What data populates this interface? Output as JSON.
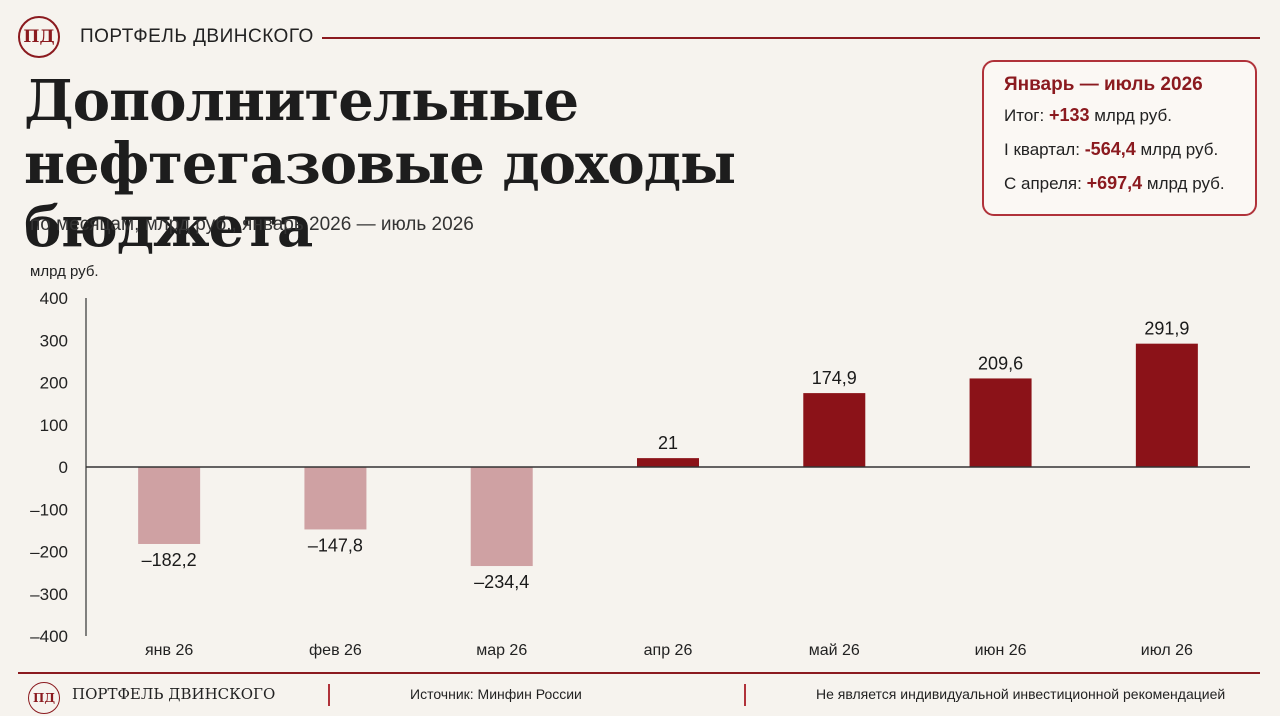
{
  "brand": {
    "logo_text": "ПД",
    "name": "ПОРТФЕЛЬ ДВИНСКОГО",
    "footer_name": "ПОРТФЕЛЬ ДВИНСКОГО"
  },
  "title": "Дополнительные нефтегазовые доходы бюджета",
  "subtitle": "по месяцам, млрд руб., январь 2026 — июль 2026",
  "summary": {
    "title": "Январь — июль 2026",
    "rows": [
      {
        "label": "Итог:",
        "value": "+133",
        "unit": "млрд руб."
      },
      {
        "label": "I квартал:",
        "value": "-564,4",
        "unit": "млрд руб."
      },
      {
        "label": "С апреля:",
        "value": "+697,4",
        "unit": "млрд руб."
      }
    ]
  },
  "footer": {
    "source": "Источник: Минфин России",
    "disclaimer": "Не является индивидуальной инвестиционной рекомендацией"
  },
  "colors": {
    "positive": "#8b1218",
    "negative": "#cfa1a3",
    "accent": "#8b1a1f"
  },
  "chart_data": {
    "type": "bar",
    "ylabel": "млрд руб.",
    "ylim": [
      -400,
      400
    ],
    "yticks": [
      400,
      300,
      200,
      100,
      0,
      -100,
      -200,
      -300,
      -400
    ],
    "ytick_labels": [
      "400",
      "300",
      "200",
      "100",
      "0",
      "–100",
      "–200",
      "–300",
      "–400"
    ],
    "grid": false,
    "categories": [
      "янв 26",
      "фев 26",
      "мар 26",
      "апр 26",
      "май 26",
      "июн 26",
      "июл 26"
    ],
    "values": [
      -182.2,
      -147.8,
      -234.4,
      21,
      174.9,
      209.6,
      291.9
    ],
    "value_labels": [
      "–182,2",
      "–147,8",
      "–234,4",
      "21",
      "174,9",
      "209,6",
      "291,9"
    ]
  }
}
